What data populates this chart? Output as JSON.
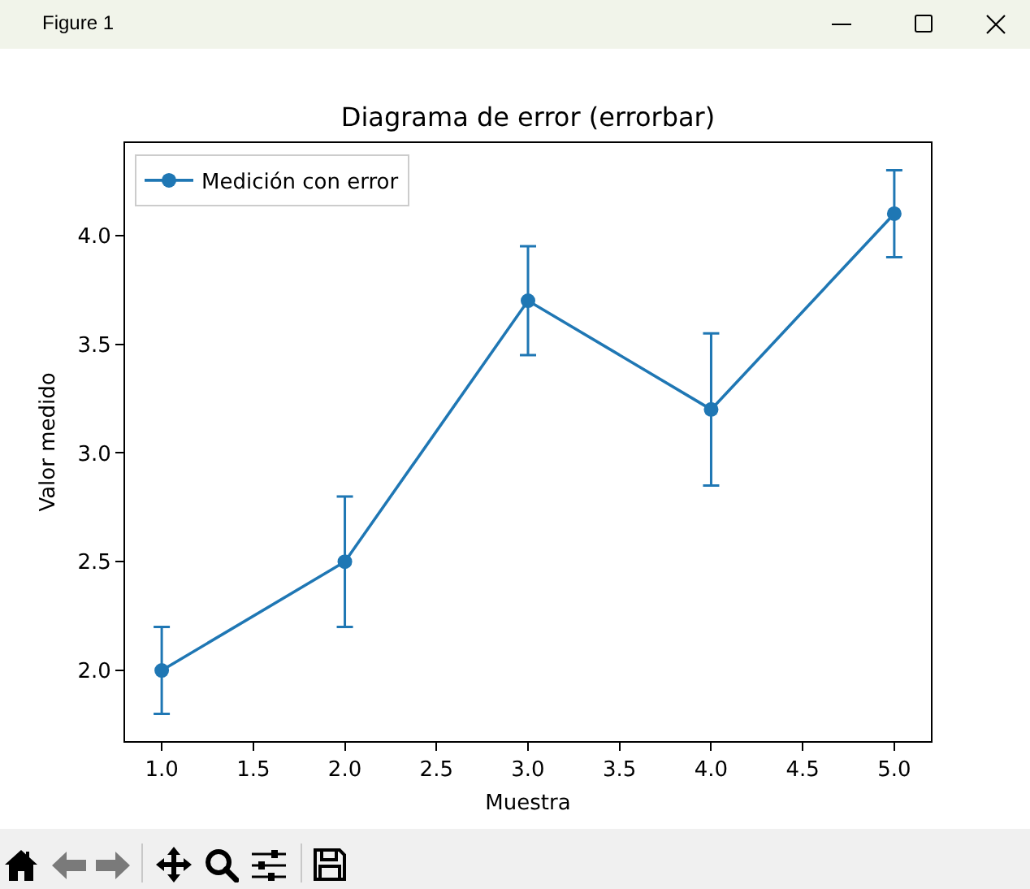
{
  "chart_data": {
    "type": "line",
    "title": "Diagrama de error (errorbar)",
    "xlabel": "Muestra",
    "ylabel": "Valor medido",
    "annotations": [
      "Figure 1"
    ],
    "x": [
      1,
      2,
      3,
      4,
      5
    ],
    "series": [
      {
        "name": "Medición con error",
        "color": "#1f77b4",
        "values": [
          2.0,
          2.5,
          3.7,
          3.2,
          4.1
        ],
        "errors": [
          0.2,
          0.3,
          0.25,
          0.35,
          0.2
        ]
      }
    ],
    "xlim": [
      0.8,
      5.2
    ],
    "xticks": [
      {
        "value": 1,
        "label": "1.0"
      },
      1.5,
      {
        "value": 2,
        "label": "2.0"
      },
      2.5,
      {
        "value": 3,
        "label": "3.0"
      },
      3.5,
      {
        "value": 4,
        "label": "4.0"
      },
      4.5,
      {
        "value": 5,
        "label": "5.0"
      }
    ],
    "ylim": [
      1.675,
      4.425
    ],
    "yticks": [
      {
        "value": 2,
        "label": "2.0"
      },
      2.5,
      {
        "value": 3,
        "label": "3.0"
      },
      3.5,
      {
        "value": 4,
        "label": "4.0"
      }
    ],
    "marker": "circle",
    "line_style": "solid",
    "legend": "top left"
  }
}
